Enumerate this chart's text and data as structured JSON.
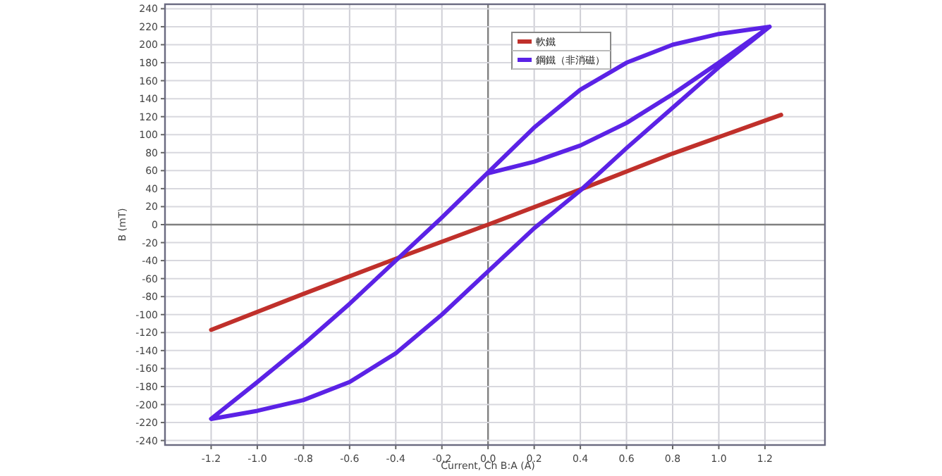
{
  "chart_data": {
    "type": "line",
    "xlabel": "Current, Ch B:A (A)",
    "ylabel": "B (mT)",
    "xlim": [
      -1.4,
      1.46
    ],
    "ylim": [
      -245,
      245
    ],
    "xticks": [
      -1.2,
      {
        "value": -1.0,
        "label": "-1.0"
      },
      -0.8,
      -0.6,
      -0.4,
      -0.2,
      {
        "value": 0,
        "label": "0.0"
      },
      0.2,
      0.4,
      0.6,
      0.8,
      {
        "value": 1.0,
        "label": "1.0"
      },
      1.2
    ],
    "yticks": [
      -240,
      -220,
      -200,
      -180,
      -160,
      -140,
      -120,
      -100,
      -80,
      -60,
      -40,
      -20,
      0,
      20,
      40,
      60,
      80,
      100,
      120,
      140,
      160,
      180,
      200,
      220,
      240
    ],
    "grid": true,
    "legend": "top",
    "marker": "none",
    "line_style": "solid",
    "series": [
      {
        "name": "軟鐵",
        "color": "#c0302b",
        "x": [
          -1.2,
          -0.8,
          -0.4,
          0,
          0.4,
          0.8,
          1.27
        ],
        "values": [
          -117,
          -77,
          -38,
          0,
          39,
          79,
          122
        ]
      },
      {
        "name": "鋼鐵（非消磁）",
        "color": "#5b22e6",
        "x": [
          0,
          0.2,
          0.4,
          0.6,
          0.8,
          1.0,
          1.22,
          1.0,
          0.8,
          0.6,
          0.4,
          0.2,
          0,
          -0.2,
          -0.4,
          -0.6,
          -0.8,
          -1.0,
          -1.2,
          -1.0,
          -0.8,
          -0.6,
          -0.4,
          -0.2,
          0,
          0.2,
          0.4,
          0.6,
          0.8,
          1.0,
          1.22
        ],
        "values": [
          57,
          70,
          88,
          113,
          145,
          180,
          220,
          212,
          200,
          180,
          150,
          108,
          58,
          8,
          -40,
          -88,
          -133,
          -175,
          -216,
          -207,
          -195,
          -175,
          -143,
          -100,
          -52,
          -4,
          38,
          85,
          130,
          175,
          220
        ]
      }
    ]
  }
}
